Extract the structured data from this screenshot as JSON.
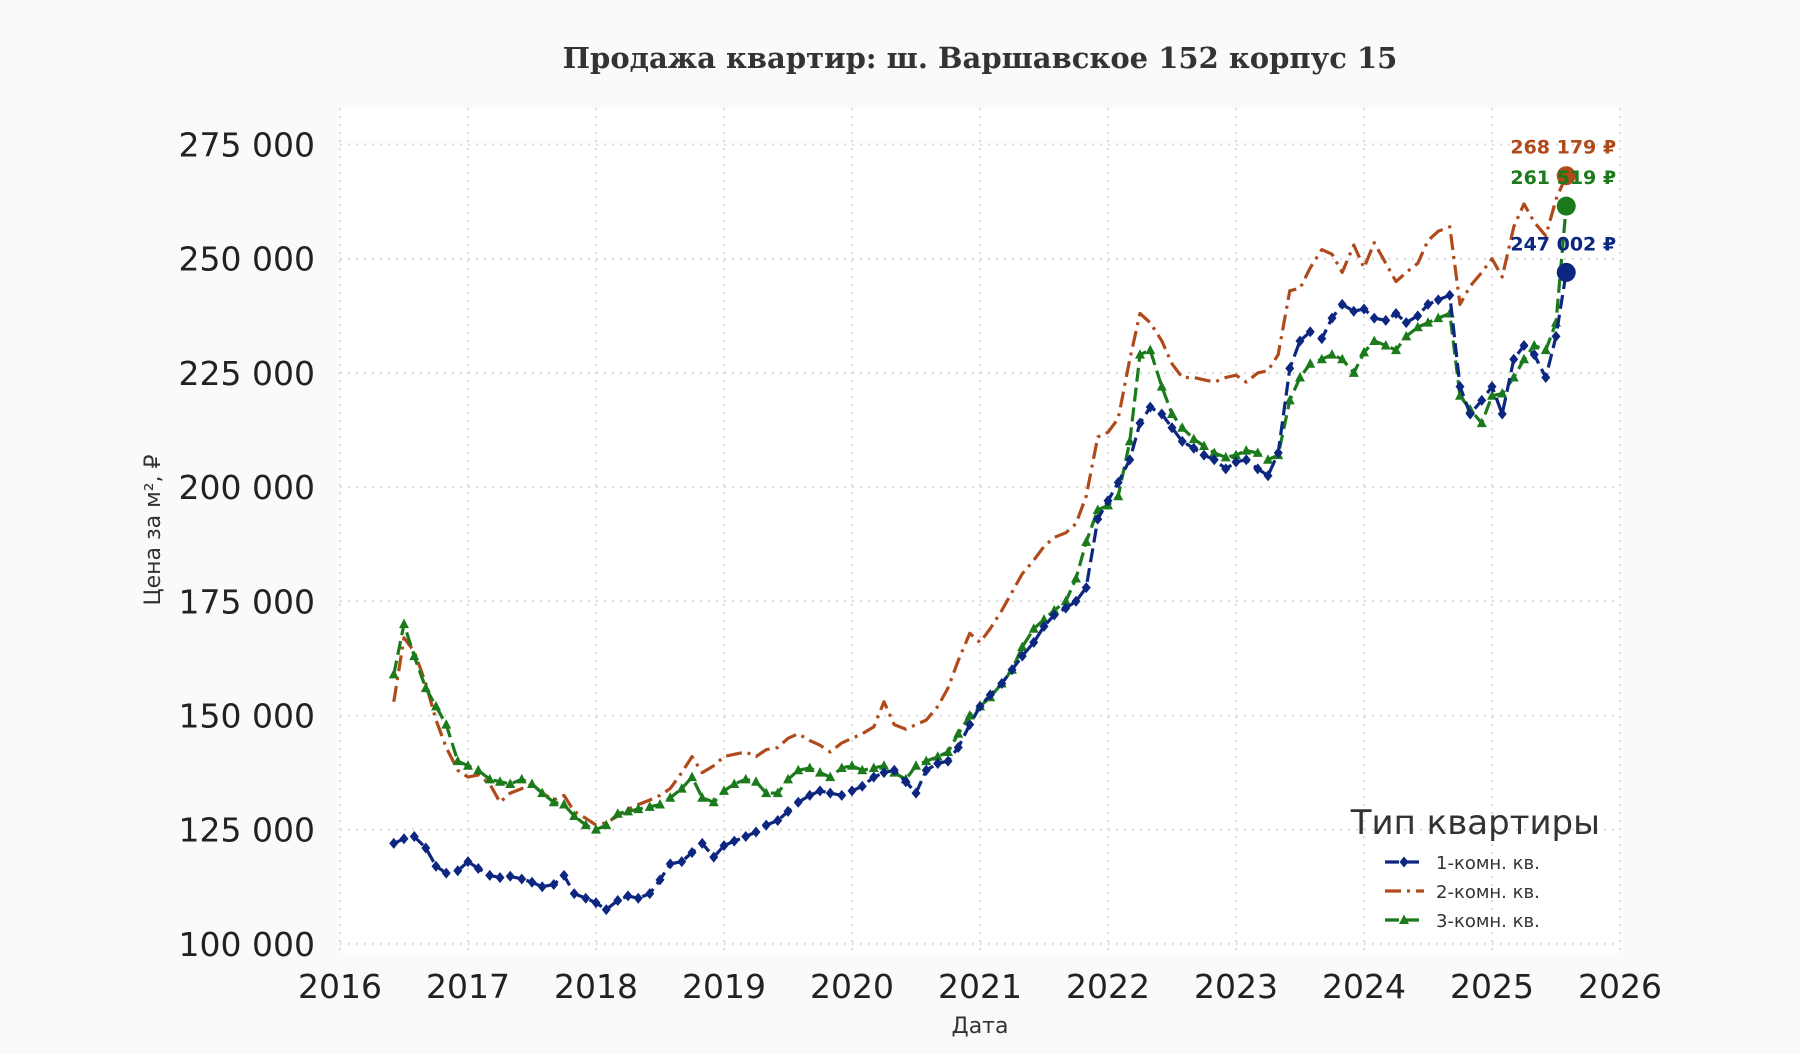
{
  "chart_data": {
    "type": "line",
    "title": "Продажа квартир: ш. Варшавское 152 корпус 15",
    "xlabel": "Дата",
    "ylabel": "Цена за м², ₽",
    "xlim": [
      2016,
      2026
    ],
    "ylim": [
      98000,
      283000
    ],
    "x_ticks": [
      2016,
      2017,
      2018,
      2019,
      2020,
      2021,
      2022,
      2023,
      2024,
      2025,
      2026
    ],
    "x_tick_labels": [
      "2016",
      "2017",
      "2018",
      "2019",
      "2020",
      "2021",
      "2022",
      "2023",
      "2024",
      "2025",
      "2026"
    ],
    "y_ticks": [
      100000,
      125000,
      150000,
      175000,
      200000,
      225000,
      250000,
      275000
    ],
    "y_tick_labels": [
      "100 000",
      "125 000",
      "150 000",
      "175 000",
      "200 000",
      "225 000",
      "250 000",
      "275 000"
    ],
    "grid": true,
    "legend": {
      "title": "Тип квартиры",
      "position": "bottom-right"
    },
    "series": [
      {
        "name": "1-комн. кв.",
        "color": "#0d2680",
        "line_style": "dashed",
        "marker": "diamond",
        "x": [
          2016.42,
          2016.5,
          2016.58,
          2016.67,
          2016.75,
          2016.83,
          2016.92,
          2017.0,
          2017.08,
          2017.17,
          2017.25,
          2017.33,
          2017.42,
          2017.5,
          2017.58,
          2017.67,
          2017.75,
          2017.83,
          2017.92,
          2018.0,
          2018.08,
          2018.17,
          2018.25,
          2018.33,
          2018.42,
          2018.5,
          2018.58,
          2018.67,
          2018.75,
          2018.83,
          2018.92,
          2019.0,
          2019.08,
          2019.17,
          2019.25,
          2019.33,
          2019.42,
          2019.5,
          2019.58,
          2019.67,
          2019.75,
          2019.83,
          2019.92,
          2020.0,
          2020.08,
          2020.17,
          2020.25,
          2020.33,
          2020.42,
          2020.5,
          2020.58,
          2020.67,
          2020.75,
          2020.83,
          2020.92,
          2021.0,
          2021.08,
          2021.17,
          2021.25,
          2021.33,
          2021.42,
          2021.5,
          2021.58,
          2021.67,
          2021.75,
          2021.83,
          2021.92,
          2022.0,
          2022.08,
          2022.17,
          2022.25,
          2022.33,
          2022.42,
          2022.5,
          2022.58,
          2022.67,
          2022.75,
          2022.83,
          2022.92,
          2023.0,
          2023.08,
          2023.17,
          2023.25,
          2023.33,
          2023.42,
          2023.5,
          2023.58,
          2023.67,
          2023.75,
          2023.83,
          2023.92,
          2024.0,
          2024.08,
          2024.17,
          2024.25,
          2024.33,
          2024.42,
          2024.5,
          2024.58,
          2024.67,
          2024.75,
          2024.83,
          2024.92,
          2025.0,
          2025.08,
          2025.17,
          2025.25,
          2025.33,
          2025.42,
          2025.5,
          2025.58
        ],
        "y": [
          122000,
          123000,
          123500,
          121000,
          117000,
          115500,
          116000,
          118000,
          116500,
          115000,
          114500,
          114800,
          114200,
          113500,
          112500,
          113000,
          115000,
          111000,
          110000,
          109000,
          107500,
          109500,
          110500,
          110000,
          111000,
          114000,
          117500,
          118000,
          120000,
          122000,
          119000,
          121500,
          122500,
          123500,
          124500,
          126000,
          127000,
          129000,
          131000,
          132500,
          133500,
          133000,
          132500,
          133500,
          134500,
          136500,
          137500,
          138000,
          135500,
          133000,
          138000,
          139500,
          140000,
          143000,
          148000,
          152000,
          154500,
          157000,
          160000,
          163000,
          166000,
          169500,
          172000,
          173500,
          175000,
          178000,
          193000,
          197000,
          201000,
          206000,
          214000,
          217500,
          216000,
          213000,
          210000,
          208500,
          207000,
          206000,
          204000,
          205500,
          206000,
          204000,
          202500,
          207500,
          226000,
          232000,
          234000,
          232500,
          237000,
          240000,
          238500,
          239000,
          237000,
          236500,
          238000,
          236000,
          237500,
          240000,
          241000,
          242000,
          222000,
          216000,
          219000,
          222000,
          216000,
          228000,
          231000,
          229000,
          224000,
          233000,
          247002
        ]
      },
      {
        "name": "2-комн. кв.",
        "color": "#b04a1a",
        "line_style": "dashdot",
        "marker": "none",
        "x": [
          2016.42,
          2016.5,
          2016.58,
          2016.67,
          2016.75,
          2016.83,
          2016.92,
          2017.0,
          2017.08,
          2017.17,
          2017.25,
          2017.33,
          2017.42,
          2017.5,
          2017.58,
          2017.67,
          2017.75,
          2017.83,
          2017.92,
          2018.0,
          2018.08,
          2018.17,
          2018.25,
          2018.33,
          2018.42,
          2018.5,
          2018.58,
          2018.67,
          2018.75,
          2018.83,
          2018.92,
          2019.0,
          2019.08,
          2019.17,
          2019.25,
          2019.33,
          2019.42,
          2019.5,
          2019.58,
          2019.67,
          2019.75,
          2019.83,
          2019.92,
          2020.0,
          2020.08,
          2020.17,
          2020.25,
          2020.33,
          2020.42,
          2020.5,
          2020.58,
          2020.67,
          2020.75,
          2020.83,
          2020.92,
          2021.0,
          2021.08,
          2021.17,
          2021.25,
          2021.33,
          2021.42,
          2021.5,
          2021.58,
          2021.67,
          2021.75,
          2021.83,
          2021.92,
          2022.0,
          2022.08,
          2022.17,
          2022.25,
          2022.33,
          2022.42,
          2022.5,
          2022.58,
          2022.67,
          2022.75,
          2022.83,
          2022.92,
          2023.0,
          2023.08,
          2023.17,
          2023.25,
          2023.33,
          2023.42,
          2023.5,
          2023.58,
          2023.67,
          2023.75,
          2023.83,
          2023.92,
          2024.0,
          2024.08,
          2024.17,
          2024.25,
          2024.33,
          2024.42,
          2024.5,
          2024.58,
          2024.67,
          2024.75,
          2024.83,
          2024.92,
          2025.0,
          2025.08,
          2025.17,
          2025.25,
          2025.33,
          2025.42,
          2025.5,
          2025.58
        ],
        "y": [
          153000,
          167000,
          164000,
          157000,
          149000,
          143000,
          138000,
          136500,
          137000,
          135000,
          131000,
          133000,
          134000,
          135000,
          133000,
          131500,
          132500,
          129000,
          127500,
          126000,
          126500,
          128000,
          129500,
          130500,
          131500,
          132500,
          134000,
          137500,
          141000,
          137500,
          139000,
          141000,
          141500,
          142000,
          141000,
          142500,
          143000,
          145000,
          146000,
          144500,
          143500,
          142000,
          144000,
          145000,
          146000,
          147500,
          153000,
          148000,
          147000,
          148000,
          149000,
          152000,
          156000,
          162000,
          168000,
          166000,
          169000,
          173000,
          177000,
          181000,
          184000,
          187000,
          189000,
          190000,
          192000,
          198000,
          211000,
          212000,
          215000,
          228000,
          238000,
          236000,
          232000,
          227000,
          224000,
          224000,
          223500,
          223000,
          224000,
          224500,
          223000,
          225000,
          225500,
          229000,
          243000,
          243500,
          248000,
          252000,
          251000,
          247000,
          253000,
          248000,
          253500,
          249000,
          245000,
          247000,
          249000,
          254000,
          256000,
          257000,
          240000,
          244000,
          247000,
          250000,
          246000,
          257000,
          262000,
          258000,
          255000,
          263000,
          268179
        ]
      },
      {
        "name": "3-комн. кв.",
        "color": "#1b7a1b",
        "line_style": "dashed",
        "marker": "triangle",
        "x": [
          2016.42,
          2016.5,
          2016.58,
          2016.67,
          2016.75,
          2016.83,
          2016.92,
          2017.0,
          2017.08,
          2017.17,
          2017.25,
          2017.33,
          2017.42,
          2017.5,
          2017.58,
          2017.67,
          2017.75,
          2017.83,
          2017.92,
          2018.0,
          2018.08,
          2018.17,
          2018.25,
          2018.33,
          2018.42,
          2018.5,
          2018.58,
          2018.67,
          2018.75,
          2018.83,
          2018.92,
          2019.0,
          2019.08,
          2019.17,
          2019.25,
          2019.33,
          2019.42,
          2019.5,
          2019.58,
          2019.67,
          2019.75,
          2019.83,
          2019.92,
          2020.0,
          2020.08,
          2020.17,
          2020.25,
          2020.33,
          2020.42,
          2020.5,
          2020.58,
          2020.67,
          2020.75,
          2020.83,
          2020.92,
          2021.0,
          2021.08,
          2021.17,
          2021.25,
          2021.33,
          2021.42,
          2021.5,
          2021.58,
          2021.67,
          2021.75,
          2021.83,
          2021.92,
          2022.0,
          2022.08,
          2022.17,
          2022.25,
          2022.33,
          2022.42,
          2022.5,
          2022.58,
          2022.67,
          2022.75,
          2022.83,
          2022.92,
          2023.0,
          2023.08,
          2023.17,
          2023.25,
          2023.33,
          2023.42,
          2023.5,
          2023.58,
          2023.67,
          2023.75,
          2023.83,
          2023.92,
          2024.0,
          2024.08,
          2024.17,
          2024.25,
          2024.33,
          2024.42,
          2024.5,
          2024.58,
          2024.67,
          2024.75,
          2024.83,
          2024.92,
          2025.0,
          2025.08,
          2025.17,
          2025.25,
          2025.33,
          2025.42,
          2025.5,
          2025.58
        ],
        "y": [
          159000,
          170000,
          163000,
          156000,
          152000,
          148000,
          140000,
          139000,
          138000,
          136000,
          135500,
          135000,
          136000,
          135000,
          133000,
          131000,
          130500,
          128000,
          126000,
          125000,
          126000,
          128500,
          129000,
          129500,
          130000,
          130500,
          132000,
          134000,
          136500,
          132000,
          131000,
          133500,
          135000,
          136000,
          135500,
          133000,
          133000,
          136000,
          138000,
          138500,
          137500,
          136500,
          138500,
          139000,
          138000,
          138500,
          139000,
          137500,
          136000,
          139000,
          140000,
          141000,
          142000,
          146000,
          150000,
          152000,
          154000,
          157000,
          160000,
          165000,
          169000,
          171000,
          173000,
          175000,
          180000,
          188000,
          195000,
          196000,
          198000,
          210000,
          229000,
          230000,
          222000,
          216000,
          213000,
          210500,
          209000,
          207500,
          206500,
          207000,
          208000,
          207500,
          206000,
          207000,
          219000,
          224000,
          227000,
          228000,
          229000,
          228000,
          225000,
          229500,
          232000,
          231000,
          230000,
          233000,
          235000,
          236000,
          237000,
          238000,
          220000,
          217000,
          214000,
          220000,
          220500,
          224000,
          228000,
          231000,
          230000,
          236000,
          261519
        ]
      }
    ],
    "annotations": [
      {
        "series": "2-комн. кв.",
        "text": "268 179 ₽",
        "x": 2025.58,
        "y": 268179
      },
      {
        "series": "3-комн. кв.",
        "text": "261 519 ₽",
        "x": 2025.58,
        "y": 261519
      },
      {
        "series": "1-комн. кв.",
        "text": "247 002 ₽",
        "x": 2025.58,
        "y": 247002
      }
    ]
  }
}
